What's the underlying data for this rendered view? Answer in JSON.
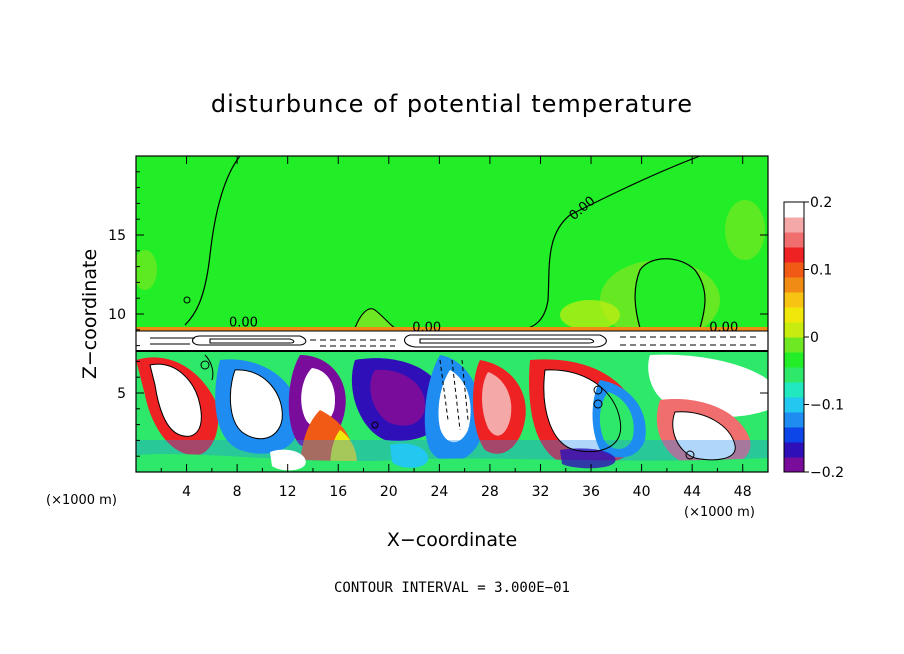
{
  "chart_data": {
    "type": "heatmap",
    "title": "disturbunce of potential temperature",
    "xlabel": "X−coordinate",
    "ylabel": "Z−coordinate",
    "x_unit": "(×1000 m)",
    "y_unit": "(×1000 m)",
    "xlim": [
      0,
      50
    ],
    "ylim": [
      0,
      20
    ],
    "x_ticks": [
      4,
      8,
      12,
      16,
      20,
      24,
      28,
      32,
      36,
      40,
      44,
      48
    ],
    "y_ticks": [
      5,
      10,
      15
    ],
    "x_tick_labels": [
      "4",
      "8",
      "12",
      "16",
      "20",
      "24",
      "28",
      "32",
      "36",
      "40",
      "44",
      "48"
    ],
    "y_tick_labels": [
      "5",
      "10",
      "15"
    ],
    "colorbar": {
      "range": [
        -0.2,
        0.2
      ],
      "ticks": [
        0.2,
        0.1,
        0,
        -0.1,
        -0.2
      ],
      "tick_labels": [
        "0.2",
        "0.1",
        "0",
        "−0.1",
        "−0.2"
      ],
      "colors": [
        "#7a0c9c",
        "#2f10b8",
        "#0c45e8",
        "#1e8cf0",
        "#22c8f0",
        "#22e8c0",
        "#2ee86a",
        "#22ee28",
        "#6ee822",
        "#c8ec10",
        "#f0e80a",
        "#f8c414",
        "#f08c14",
        "#f05a14",
        "#ee2222",
        "#f06e6e",
        "#f4a8a8",
        "#ffffff"
      ]
    },
    "contour_labels": [
      {
        "text": "0.00",
        "x": 35.5,
        "y": 16.5
      },
      {
        "text": "0.00",
        "x": 8.5,
        "y": 9.2
      },
      {
        "text": "0.00",
        "x": 23,
        "y": 8.9
      },
      {
        "text": "0.00",
        "x": 46.5,
        "y": 8.9
      }
    ],
    "footer": "CONTOUR INTERVAL =  3.000E−01"
  }
}
